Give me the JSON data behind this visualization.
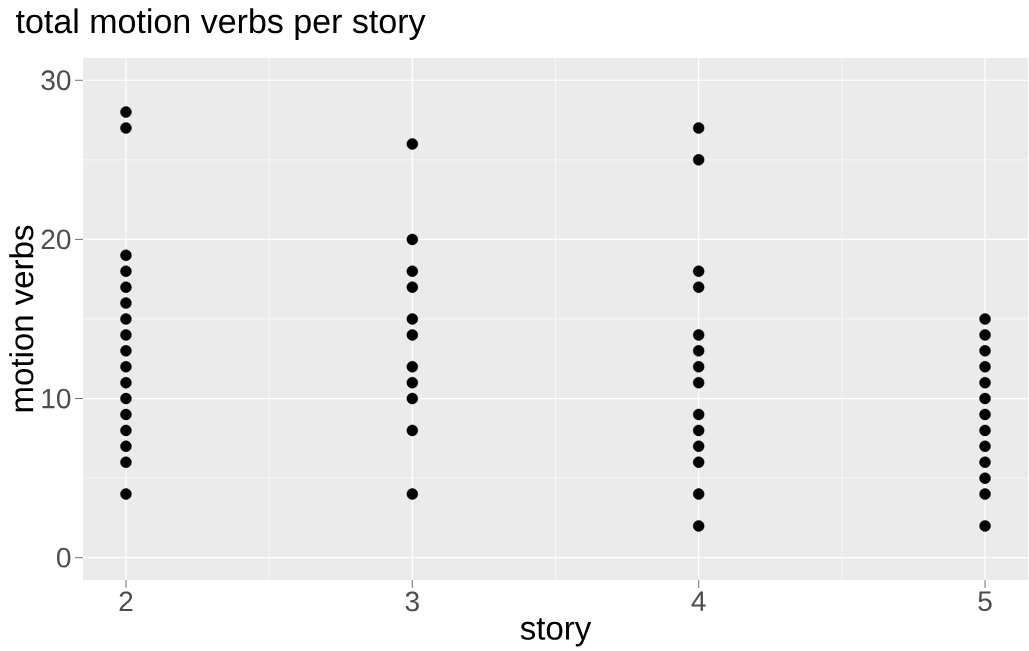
{
  "chart_data": {
    "type": "scatter",
    "title": "total motion verbs per story",
    "xlabel": "story",
    "ylabel": "motion verbs",
    "series": [
      {
        "color": "#000000",
        "x": [
          2,
          2,
          2,
          2,
          2,
          2,
          2,
          2,
          2,
          2,
          2,
          2,
          2,
          2,
          2,
          2,
          2,
          3,
          3,
          3,
          3,
          3,
          3,
          3,
          3,
          3,
          3,
          3,
          4,
          4,
          4,
          4,
          4,
          4,
          4,
          4,
          4,
          4,
          4,
          4,
          4,
          4,
          5,
          5,
          5,
          5,
          5,
          5,
          5,
          5,
          5,
          5,
          5,
          5,
          5
        ],
        "values": [
          28,
          27,
          19,
          18,
          17,
          16,
          15,
          14,
          13,
          12,
          11,
          10,
          9,
          8,
          7,
          6,
          4,
          26,
          20,
          18,
          17,
          15,
          14,
          12,
          11,
          10,
          8,
          4,
          27,
          25,
          18,
          17,
          14,
          13,
          12,
          11,
          9,
          8,
          7,
          6,
          4,
          2,
          15,
          14,
          13,
          12,
          11,
          10,
          9,
          8,
          7,
          6,
          5,
          4,
          2
        ]
      }
    ],
    "xlim": [
      1.85,
      5.15
    ],
    "ylim": [
      -1.4,
      31.4
    ],
    "xticks": [
      2,
      3,
      4,
      5
    ],
    "yticks": [
      0,
      10,
      20,
      30
    ],
    "grid": true,
    "marker": "circle"
  }
}
